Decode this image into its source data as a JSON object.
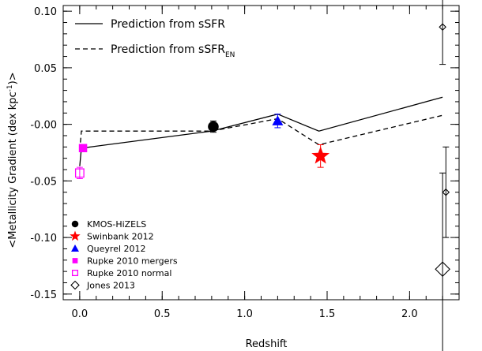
{
  "chart_data": {
    "type": "scatter",
    "xlabel": "Redshift",
    "ylabel": "<Metallicity Gradient (dex kpc",
    "ylabel_sup": "-1",
    "ylabel_end": ")>",
    "xlim": [
      -0.1,
      2.3
    ],
    "ylim": [
      -0.155,
      0.105
    ],
    "x_ticks": [
      {
        "value": 0.0,
        "label": "0.0"
      },
      {
        "value": 0.5,
        "label": "0.5"
      },
      {
        "value": 1.0,
        "label": "1.0"
      },
      {
        "value": 1.5,
        "label": "1.5"
      },
      {
        "value": 2.0,
        "label": "2.0"
      }
    ],
    "y_ticks": [
      {
        "value": 0.1,
        "label": "0.10"
      },
      {
        "value": 0.05,
        "label": "0.05"
      },
      {
        "value": 0.0,
        "label": "-0.00"
      },
      {
        "value": -0.05,
        "label": "-0.05"
      },
      {
        "value": -0.1,
        "label": "-0.10"
      },
      {
        "value": -0.15,
        "label": "-0.15"
      }
    ],
    "x_minor_step": 0.1,
    "y_minor_step": 0.01,
    "lines": [
      {
        "name": "Prediction from sSFR",
        "style": "solid",
        "points": [
          [
            0.0,
            -0.037
          ],
          [
            0.01,
            -0.021
          ],
          [
            0.8,
            -0.006
          ],
          [
            1.2,
            0.009
          ],
          [
            1.45,
            -0.006
          ],
          [
            2.2,
            0.024
          ]
        ]
      },
      {
        "name": "Prediction from sSFR",
        "name_sub": "EN",
        "style": "dashed",
        "points": [
          [
            0.0,
            -0.023
          ],
          [
            0.01,
            -0.006
          ],
          [
            0.8,
            -0.006
          ],
          [
            1.2,
            0.005
          ],
          [
            1.45,
            -0.018
          ],
          [
            2.2,
            0.008
          ]
        ]
      }
    ],
    "series": [
      {
        "name": "KMOS-HiZELS",
        "marker": "filled-circle",
        "color": "#000000",
        "points": [
          {
            "x": 0.81,
            "y": -0.002,
            "yerr": 0.005
          }
        ]
      },
      {
        "name": "Swinbank 2012",
        "marker": "star",
        "color": "#ff0000",
        "points": [
          {
            "x": 1.46,
            "y": -0.028,
            "yerr": 0.01
          }
        ]
      },
      {
        "name": "Queyrel 2012",
        "marker": "filled-triangle",
        "color": "#0000ff",
        "points": [
          {
            "x": 1.2,
            "y": 0.003,
            "yerr": 0.006
          }
        ]
      },
      {
        "name": "Rupke 2010 mergers",
        "marker": "filled-square",
        "color": "#ff00ff",
        "points": [
          {
            "x": 0.02,
            "y": -0.021,
            "yerr": 0.003
          }
        ]
      },
      {
        "name": "Rupke 2010 normal",
        "marker": "open-square",
        "color": "#ff00ff",
        "points": [
          {
            "x": 0.0,
            "y": -0.043,
            "yerr": 0.005
          }
        ]
      },
      {
        "name": "Jones 2013",
        "marker": "open-diamond",
        "color": "#000000",
        "points": [
          {
            "x": 2.2,
            "y": 0.086,
            "yerr": 0.033
          },
          {
            "x": 2.22,
            "y": -0.06,
            "yerr": 0.04
          },
          {
            "x": 2.2,
            "y": -0.128,
            "yerr": 0.085,
            "size": "large"
          }
        ]
      }
    ],
    "legend_lines_position": "top-left",
    "legend_markers_position": "bottom-left"
  }
}
